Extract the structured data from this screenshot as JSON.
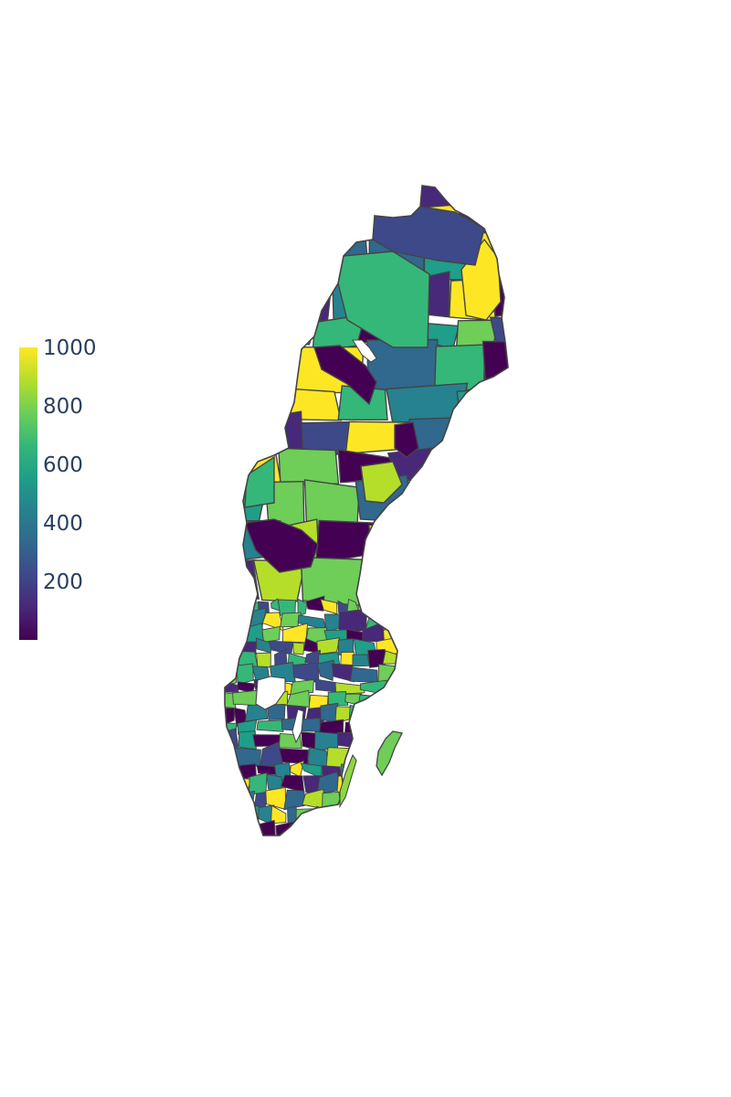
{
  "map": {
    "region": "Sweden",
    "unit": "municipality",
    "color_scale": "viridis",
    "border_color": "#444444",
    "background": "#ffffff"
  },
  "colorbar": {
    "min": 0,
    "max": 1000,
    "ticks": [
      {
        "value": 200,
        "label": "200"
      },
      {
        "value": 400,
        "label": "400"
      },
      {
        "value": 600,
        "label": "600"
      },
      {
        "value": 800,
        "label": "800"
      },
      {
        "value": 1000,
        "label": "1000"
      }
    ],
    "colors": [
      "#440154",
      "#482878",
      "#3e4989",
      "#31688e",
      "#26828e",
      "#1f9e89",
      "#35b779",
      "#6ece58",
      "#b5de2b",
      "#fde725"
    ]
  }
}
